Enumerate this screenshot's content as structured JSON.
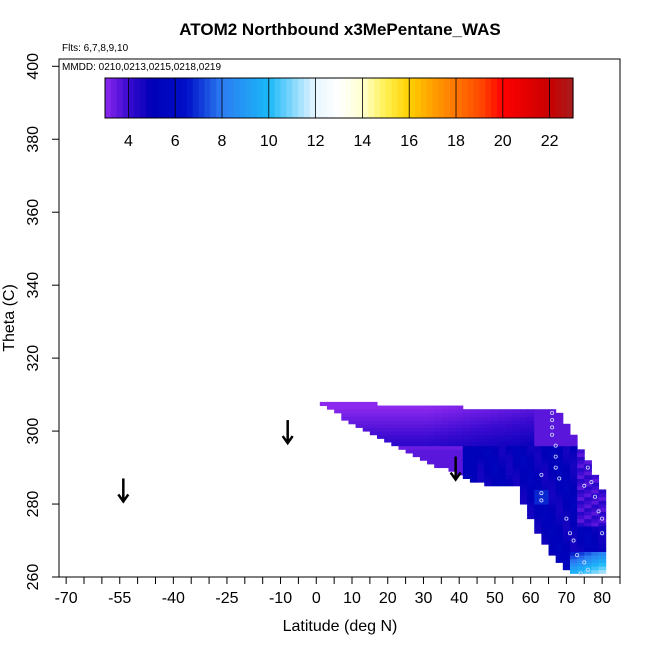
{
  "chart_data": {
    "type": "heatmap",
    "title": "ATOM2 Northbound x3MePentane_WAS",
    "flights_label": "Flts: 6,7,8,9,10",
    "dates_label": "MMDD: 0210,0213,0215,0218,0219",
    "xlabel": "Latitude (deg N)",
    "ylabel": "Theta (C)",
    "xlim": [
      -72,
      85
    ],
    "ylim": [
      260,
      402
    ],
    "x_ticks": [
      -70,
      -65,
      -60,
      -55,
      -50,
      -45,
      -40,
      -35,
      -30,
      -25,
      -20,
      -15,
      -10,
      -5,
      0,
      5,
      10,
      15,
      20,
      25,
      30,
      35,
      40,
      45,
      50,
      55,
      60,
      65,
      70,
      75,
      80,
      85
    ],
    "x_tick_labels": [
      {
        "value": -70,
        "label": "-70"
      },
      {
        "value": -55,
        "label": "-55"
      },
      {
        "value": -40,
        "label": "-40"
      },
      {
        "value": -25,
        "label": "-25"
      },
      {
        "value": -10,
        "label": "-10"
      },
      {
        "value": 0,
        "label": "0"
      },
      {
        "value": 10,
        "label": "10"
      },
      {
        "value": 20,
        "label": "20"
      },
      {
        "value": 30,
        "label": "30"
      },
      {
        "value": 40,
        "label": "40"
      },
      {
        "value": 50,
        "label": "50"
      },
      {
        "value": 60,
        "label": "60"
      },
      {
        "value": 70,
        "label": "70"
      },
      {
        "value": 80,
        "label": "80"
      }
    ],
    "y_ticks": [
      {
        "value": 260,
        "label": "260"
      },
      {
        "value": 280,
        "label": "280"
      },
      {
        "value": 300,
        "label": "300"
      },
      {
        "value": 320,
        "label": "320"
      },
      {
        "value": 340,
        "label": "340"
      },
      {
        "value": 360,
        "label": "360"
      },
      {
        "value": 380,
        "label": "380"
      },
      {
        "value": 400,
        "label": "400"
      }
    ],
    "colorbar": {
      "range": [
        3,
        23
      ],
      "ticks": [
        4,
        6,
        8,
        10,
        12,
        14,
        16,
        18,
        20,
        22
      ],
      "tick_labels": [
        "4",
        "6",
        "8",
        "10",
        "12",
        "14",
        "16",
        "18",
        "20",
        "22"
      ],
      "stops": [
        {
          "value": 3,
          "color": "#8c28ee"
        },
        {
          "value": 4,
          "color": "#3a0ad0"
        },
        {
          "value": 5,
          "color": "#0000b8"
        },
        {
          "value": 6.5,
          "color": "#0010c8"
        },
        {
          "value": 8,
          "color": "#2c7cf2"
        },
        {
          "value": 10,
          "color": "#1ab8f8"
        },
        {
          "value": 12,
          "color": "#e8f6ff"
        },
        {
          "value": 13,
          "color": "#ffffff"
        },
        {
          "value": 14,
          "color": "#ffffd0"
        },
        {
          "value": 15,
          "color": "#fff050"
        },
        {
          "value": 16,
          "color": "#ffd000"
        },
        {
          "value": 17,
          "color": "#ffa000"
        },
        {
          "value": 19,
          "color": "#ff4c00"
        },
        {
          "value": 20,
          "color": "#ff0000"
        },
        {
          "value": 22,
          "color": "#c80000"
        },
        {
          "value": 23,
          "color": "#a81c1c"
        }
      ]
    },
    "arrows": [
      {
        "lat": -54,
        "theta": 284
      },
      {
        "lat": -8,
        "theta": 300
      },
      {
        "lat": 39,
        "theta": 290
      }
    ],
    "field": {
      "top_edge": [
        [
          -1,
          309
        ],
        [
          0,
          308
        ],
        [
          16,
          308
        ],
        [
          16,
          307
        ],
        [
          40,
          307
        ],
        [
          40,
          306
        ],
        [
          66,
          306
        ],
        [
          70,
          300
        ],
        [
          76,
          290
        ],
        [
          80,
          282
        ],
        [
          80,
          261
        ]
      ],
      "bottom_edge": [
        [
          -1,
          309
        ],
        [
          10,
          302
        ],
        [
          20,
          297
        ],
        [
          30,
          292
        ],
        [
          40,
          288
        ],
        [
          48,
          285
        ],
        [
          55,
          285
        ],
        [
          60,
          274
        ],
        [
          65,
          266
        ],
        [
          70,
          262
        ],
        [
          73,
          261
        ],
        [
          80,
          261
        ]
      ],
      "grid": {
        "lat_step": 2,
        "theta_step": 1
      },
      "regions": [
        {
          "name": "upper",
          "lat_min": -1,
          "lat_max": 60,
          "theta_min": 295,
          "value": 3.4
        },
        {
          "name": "core",
          "lat_min": 40,
          "lat_max": 70,
          "theta_min": 261,
          "theta_max": 295,
          "value": 5.2
        },
        {
          "name": "polar-high",
          "lat_min": 72,
          "lat_max": 80,
          "theta_min": 275,
          "value": 4.0
        },
        {
          "name": "low-plume",
          "lat_min": 70,
          "lat_max": 78,
          "theta_min": 261,
          "theta_max": 266,
          "value": 8.6
        }
      ],
      "sample_points": [
        [
          66,
          305
        ],
        [
          66,
          303
        ],
        [
          66,
          301
        ],
        [
          66,
          299
        ],
        [
          67,
          296
        ],
        [
          67,
          293
        ],
        [
          67,
          290
        ],
        [
          68,
          287
        ],
        [
          63,
          288
        ],
        [
          63,
          283
        ],
        [
          63,
          281
        ],
        [
          76,
          290
        ],
        [
          77,
          286
        ],
        [
          78,
          282
        ],
        [
          75,
          285
        ],
        [
          79,
          278
        ],
        [
          80,
          276
        ],
        [
          80,
          272
        ],
        [
          70,
          276
        ],
        [
          71,
          272
        ],
        [
          72,
          270
        ],
        [
          73,
          266
        ],
        [
          75,
          264
        ],
        [
          76,
          262
        ],
        [
          74,
          261
        ]
      ]
    }
  }
}
